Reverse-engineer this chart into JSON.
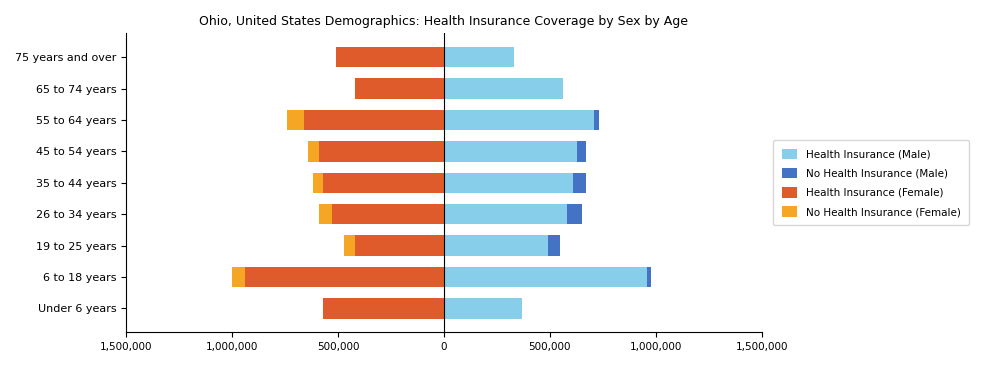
{
  "title": "Ohio, United States Demographics: Health Insurance Coverage by Sex by Age",
  "age_groups": [
    "Under 6 years",
    "6 to 18 years",
    "19 to 25 years",
    "26 to 34 years",
    "35 to 44 years",
    "45 to 54 years",
    "55 to 64 years",
    "65 to 74 years",
    "75 years and over"
  ],
  "male_insured": [
    370000,
    960000,
    490000,
    580000,
    610000,
    630000,
    710000,
    560000,
    330000
  ],
  "male_uninsured": [
    0,
    20000,
    60000,
    70000,
    60000,
    40000,
    20000,
    0,
    0
  ],
  "female_insured": [
    570000,
    940000,
    420000,
    530000,
    570000,
    590000,
    660000,
    420000,
    510000
  ],
  "female_uninsured": [
    0,
    60000,
    50000,
    60000,
    50000,
    50000,
    80000,
    0,
    0
  ],
  "colors": {
    "male_insured": "#87CEEB",
    "male_uninsured": "#4472C4",
    "female_insured": "#E05B2B",
    "female_uninsured": "#F5A623"
  },
  "xlim": 1500000,
  "legend_labels": [
    "Health Insurance (Male)",
    "No Health Insurance (Male)",
    "Health Insurance (Female)",
    "No Health Insurance (Female)"
  ]
}
